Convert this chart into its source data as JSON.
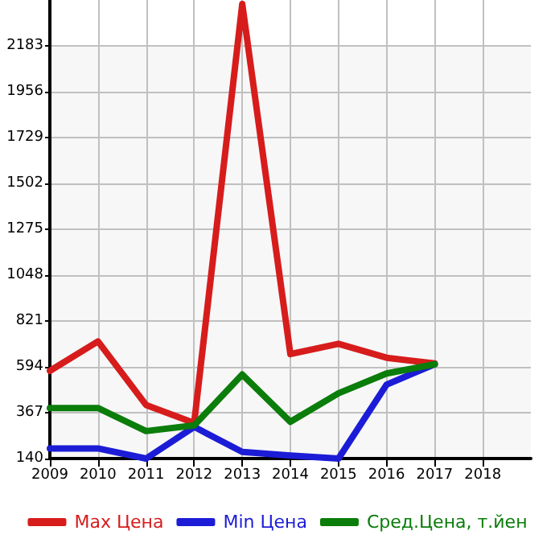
{
  "chart_data": {
    "type": "line",
    "x": [
      2009,
      2010,
      2011,
      2012,
      2013,
      2014,
      2015,
      2016,
      2017
    ],
    "series": [
      {
        "name": "Max Цена",
        "color": "#d71c1c",
        "values": [
          574,
          720,
          405,
          316,
          2390,
          657,
          708,
          639,
          611
        ]
      },
      {
        "name": "Min Цена",
        "color": "#1c1cd7",
        "values": [
          190,
          190,
          140,
          297,
          173,
          155,
          140,
          506,
          607
        ]
      },
      {
        "name": "Сред.Цена, т.йен",
        "color": "#0a7d0a",
        "values": [
          390,
          390,
          276,
          304,
          556,
          322,
          463,
          561,
          607
        ]
      }
    ],
    "xlim": [
      2009,
      2019
    ],
    "xticks": [
      2009,
      2010,
      2011,
      2012,
      2013,
      2014,
      2015,
      2016,
      2017,
      2018
    ],
    "ylim": [
      140,
      2410
    ],
    "yticks": [
      140,
      367,
      594,
      821,
      1048,
      1275,
      1502,
      1729,
      1956,
      2183
    ],
    "grid": true,
    "legend": "bottom",
    "marker": "none",
    "line_style": "solid"
  }
}
